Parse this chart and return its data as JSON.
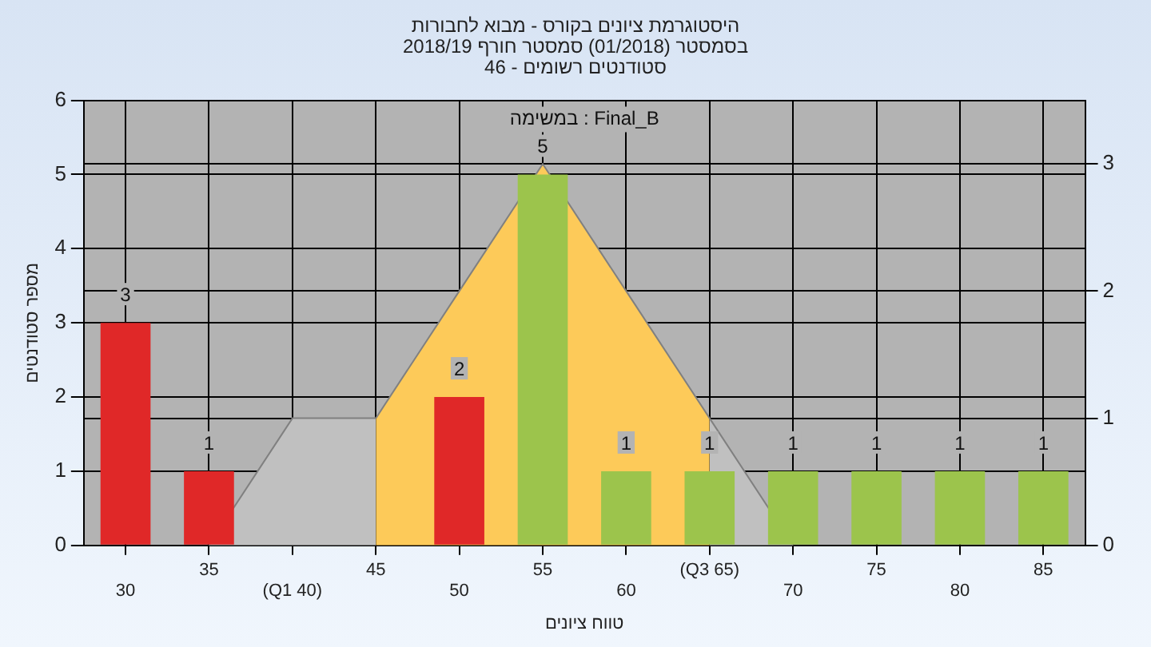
{
  "chart_data": {
    "type": "bar",
    "title": "היסטוגרמת ציונים בקורס - מבוא לחבורות\nבסמסטר (01/2018) סמסטר חורף 2018/19\nסטודנטים רשומים - 46",
    "xlabel": "טווח ציונים",
    "ylabel": "מספר סטודנטים",
    "annotations": [
      "Final_B : במשימה"
    ],
    "categories": [
      "30",
      "35",
      "(Q1 40)",
      "45",
      "50",
      "55",
      "60",
      "(Q3 65)",
      "70",
      "75",
      "80",
      "85"
    ],
    "series": [
      {
        "values": [
          3,
          1,
          0,
          0,
          2,
          5,
          1,
          1,
          1,
          1,
          1,
          1
        ],
        "colors": [
          "#e02828",
          "#e02828",
          "#e02828",
          "#e02828",
          "#e02828",
          "#9cc44c",
          "#9cc44c",
          "#9cc44c",
          "#9cc44c",
          "#9cc44c",
          "#9cc44c",
          "#9cc44c"
        ],
        "value_labels": [
          "3",
          "1",
          null,
          null,
          "2",
          "5",
          "1",
          "1",
          "1",
          "1",
          "1",
          "1"
        ]
      },
      {
        "type": "area",
        "axis": "y2",
        "color": "#c0c0c0",
        "values": [
          null,
          0,
          1,
          1,
          null,
          null,
          null,
          1,
          0,
          null,
          null,
          null
        ]
      },
      {
        "type": "area",
        "axis": "y2",
        "color": "#fdca59",
        "values": [
          null,
          null,
          null,
          1,
          2,
          3,
          2,
          1,
          null,
          null,
          null,
          null
        ]
      }
    ],
    "ylim": [
      0,
      6
    ],
    "yticks": [
      0,
      1,
      2,
      3,
      4,
      5,
      6
    ],
    "y2lim": [
      0,
      3.5
    ],
    "y2ticks": [
      0,
      1,
      2,
      3
    ],
    "grid": true,
    "legend": false
  }
}
